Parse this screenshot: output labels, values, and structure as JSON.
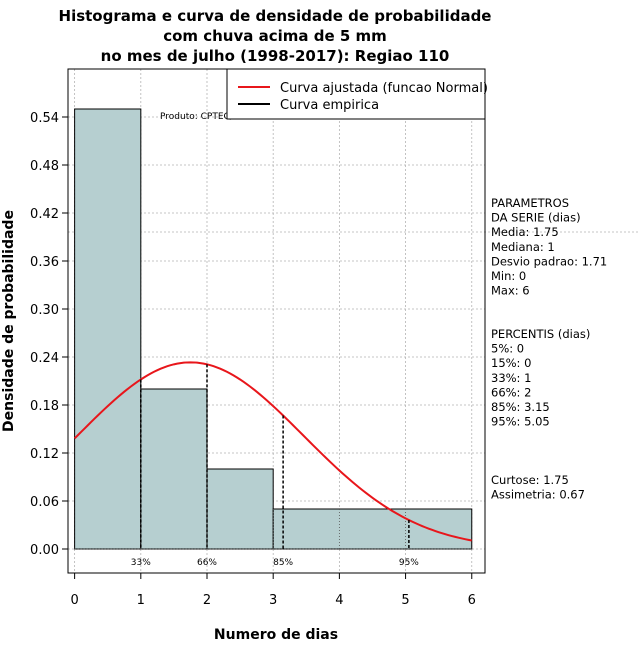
{
  "chart_data": {
    "type": "bar",
    "title_lines": [
      "Histograma e curva de densidade de probabilidade",
      "com chuva acima de 5 mm",
      "no mes de julho (1998-2017): Regiao 110"
    ],
    "xlabel": "Numero de dias",
    "ylabel": "Densidade de probabilidade",
    "xlim": [
      -0.1,
      6.2
    ],
    "ylim": [
      -0.03,
      0.6
    ],
    "xticks": [
      0,
      1,
      2,
      3,
      4,
      5,
      6
    ],
    "yticks": [
      0.0,
      0.06,
      0.12,
      0.18,
      0.24,
      0.3,
      0.36,
      0.42,
      0.48,
      0.54
    ],
    "ytick_labels": [
      "0.00",
      "0.06",
      "0.12",
      "0.18",
      "0.24",
      "0.30",
      "0.36",
      "0.42",
      "0.48",
      "0.54"
    ],
    "bins": [
      {
        "from": 0,
        "to": 1,
        "value": 0.55
      },
      {
        "from": 1,
        "to": 2,
        "value": 0.2
      },
      {
        "from": 2,
        "to": 3,
        "value": 0.1
      },
      {
        "from": 3,
        "to": 6,
        "value": 0.05
      }
    ],
    "normal_curve": {
      "mean": 1.75,
      "sd": 1.71,
      "x_from": 0,
      "x_to": 6
    },
    "percentile_markers": [
      {
        "x": 1,
        "label": "33%"
      },
      {
        "x": 2,
        "label": "66%"
      },
      {
        "x": 3.15,
        "label": "85%"
      },
      {
        "x": 5.05,
        "label": "95%"
      }
    ],
    "legend": {
      "placement": "top-right",
      "entries": [
        {
          "label": "Curva ajustada (funcao Normal)",
          "color": "#e8161b"
        },
        {
          "label": "Curva empirica",
          "color": "#000000"
        }
      ]
    },
    "credit": "Produto: CPTEC/INPE",
    "colors": {
      "bar_fill": "#b6cfd0",
      "curve": "#e8161b",
      "grid": "#b4b4b4"
    }
  },
  "sidebar": {
    "parametros": [
      "PARAMETROS",
      "DA SERIE (dias)",
      "  Media: 1.75",
      "  Mediana: 1",
      "  Desvio padrao: 1.71",
      "  Min: 0",
      "  Max: 6"
    ],
    "percentis": [
      "PERCENTIS (dias)",
      "   5%: 0",
      "   15%: 0",
      "   33%: 1",
      "   66%: 2",
      "   85%: 3.15",
      "   95%: 5.05"
    ],
    "momentos": [
      "    Curtose: 1.75",
      "Assimetria: 0.67"
    ]
  }
}
